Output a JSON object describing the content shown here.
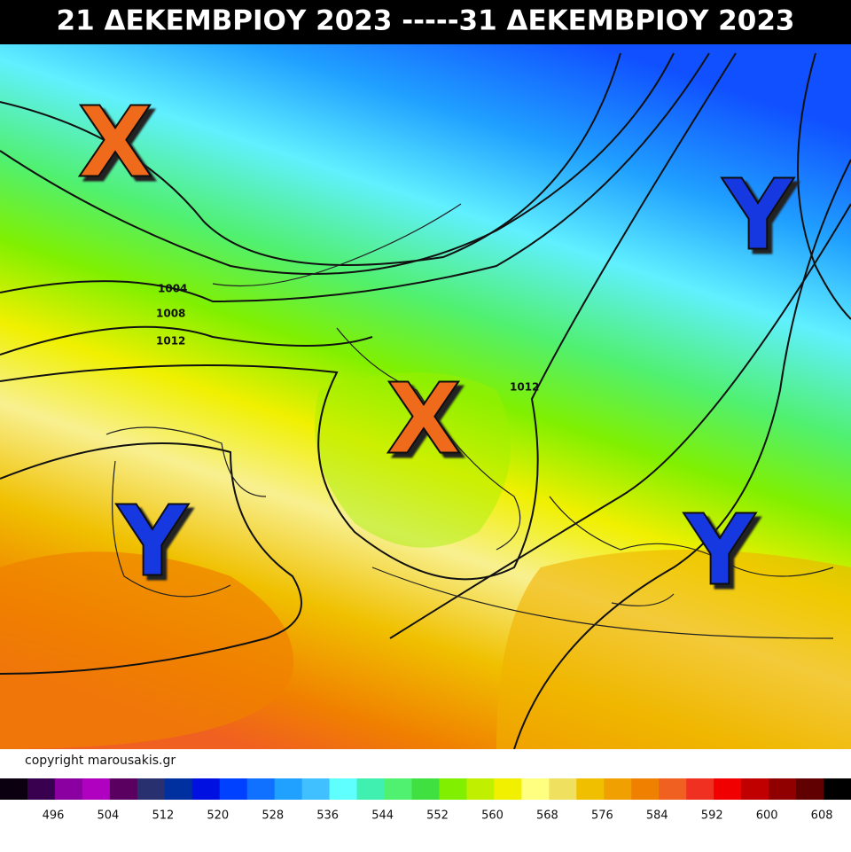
{
  "title": "21 ΔΕΚΕΜΒΡΙΟΥ 2023 -----31 ΔΕΚΕΜΒΡΙΟΥ 2023",
  "isobar_labels": [
    "1004",
    "1008",
    "1012",
    "1012"
  ],
  "markers": [
    {
      "label": "X"
    },
    {
      "label": "X"
    },
    {
      "label": "Y"
    },
    {
      "label": "Y"
    },
    {
      "label": "Y"
    }
  ],
  "copyright": "copyright marousakis.gr",
  "scale": {
    "colors": [
      "#0a0010",
      "#3a0050",
      "#8a00a0",
      "#b000c0",
      "#5a0060",
      "#283070",
      "#0030a0",
      "#0010e0",
      "#0040ff",
      "#1070ff",
      "#20a0ff",
      "#40c0ff",
      "#60ffff",
      "#40f0b0",
      "#50f070",
      "#40e040",
      "#80f000",
      "#c0f000",
      "#f0f000",
      "#ffff80",
      "#f0e060",
      "#f0c000",
      "#f0a000",
      "#f08000",
      "#f06020",
      "#f03020",
      "#f00000",
      "#c00000",
      "#900000",
      "#600000",
      "#000000"
    ],
    "labels": [
      496,
      504,
      512,
      520,
      528,
      536,
      544,
      552,
      560,
      568,
      576,
      584,
      592,
      600,
      608
    ]
  }
}
